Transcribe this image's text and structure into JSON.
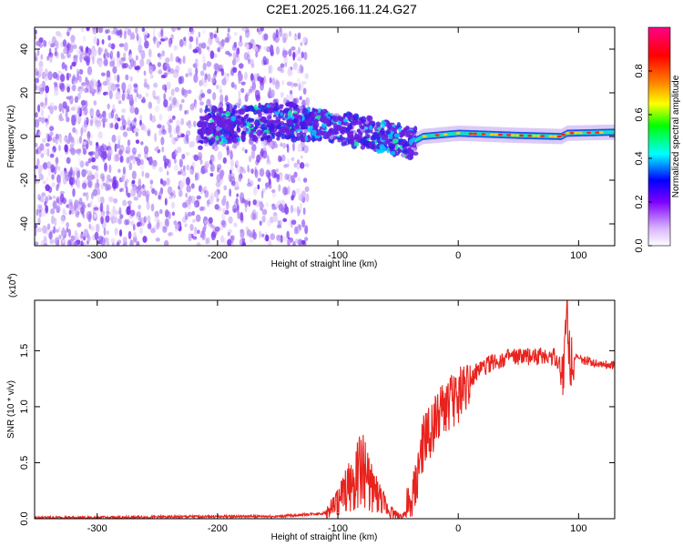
{
  "title": "C2E1.2025.166.11.24.G27",
  "chart_data": [
    {
      "type": "heatmap",
      "xlabel": "Height of straight line (km)",
      "ylabel": "Frequency (Hz)",
      "xlim": [
        -352,
        130
      ],
      "ylim": [
        -50,
        50
      ],
      "xticks": [
        -300,
        -200,
        -100,
        0,
        100
      ],
      "yticks": [
        -40,
        -20,
        0,
        20,
        40
      ],
      "colorbar": {
        "label": "Normalized spectral amplitude",
        "range": [
          0,
          1
        ],
        "ticks": [
          "0.0",
          "0.2",
          "0.4",
          "0.6",
          "0.8"
        ],
        "colors": [
          "#ffffff",
          "#d9b3ff",
          "#7f00ff",
          "#0000ff",
          "#00ffff",
          "#00ff00",
          "#ffff00",
          "#ff7f00",
          "#ff0000",
          "#ff0088"
        ]
      },
      "features": {
        "noise_region_x": [
          -352,
          -125
        ],
        "signal_track": [
          {
            "x": -210,
            "y": 5
          },
          {
            "x": -180,
            "y": 6
          },
          {
            "x": -140,
            "y": 7
          },
          {
            "x": -100,
            "y": 4
          },
          {
            "x": -60,
            "y": 0
          },
          {
            "x": -40,
            "y": -3
          },
          {
            "x": -30,
            "y": 0
          },
          {
            "x": 0,
            "y": 1.5
          },
          {
            "x": 50,
            "y": 0.5
          },
          {
            "x": 85,
            "y": 0
          },
          {
            "x": 90,
            "y": 1.5
          },
          {
            "x": 130,
            "y": 2
          }
        ]
      }
    },
    {
      "type": "line",
      "xlabel": "Height of straight line (km)",
      "ylabel": "SNR (10 * v/v)",
      "multiplier": "(x10",
      "multiplier_exp": "4",
      "xlim": [
        -352,
        130
      ],
      "ylim": [
        0,
        1.95
      ],
      "xticks": [
        -300,
        -200,
        -100,
        0,
        100
      ],
      "yticks": [
        "0.0",
        "0.5",
        "1.0",
        "1.5"
      ],
      "line_color": "#e8231e",
      "series": [
        {
          "x": [
            -352,
            -300,
            -200,
            -150,
            -110,
            -100,
            -90,
            -80,
            -75,
            -70,
            -60,
            -50,
            -40,
            -35,
            -30,
            -20,
            -10,
            0,
            10,
            20,
            30,
            40,
            60,
            80,
            88,
            90,
            92,
            95,
            100,
            110,
            120,
            130
          ],
          "values": [
            0.01,
            0.01,
            0.02,
            0.02,
            0.05,
            0.15,
            0.3,
            0.45,
            0.35,
            0.25,
            0.1,
            0.02,
            0.05,
            0.3,
            0.65,
            0.85,
            1.0,
            1.1,
            1.25,
            1.35,
            1.4,
            1.43,
            1.45,
            1.45,
            1.3,
            1.9,
            1.5,
            1.45,
            1.42,
            1.4,
            1.38,
            1.37
          ]
        }
      ]
    }
  ]
}
